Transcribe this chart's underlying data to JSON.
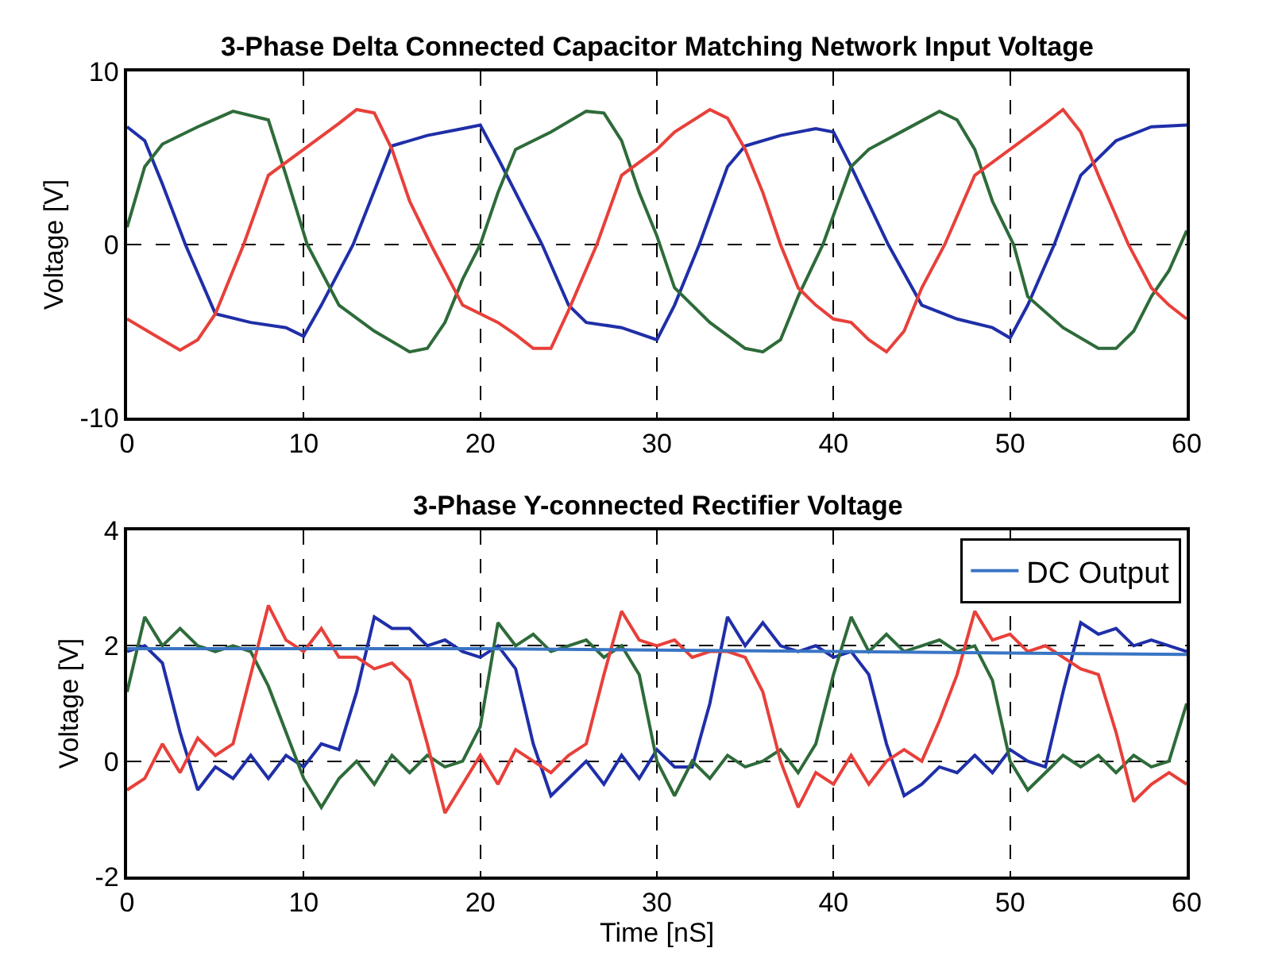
{
  "chart_data": [
    {
      "type": "line",
      "title": "3-Phase Delta Connected Capacitor Matching Network Input Voltage",
      "ylabel": "Voltage [V]",
      "xlim": [
        0,
        60
      ],
      "xticks": [
        0,
        10,
        20,
        30,
        40,
        50,
        60
      ],
      "ylim": [
        -10,
        10
      ],
      "yticks": [
        -10,
        0,
        10
      ],
      "grid": true,
      "legend": false,
      "marker": "none",
      "line_style": "solid",
      "series": [
        {
          "color": "#1f2fa8",
          "x": [
            0,
            1,
            2,
            3.3,
            5,
            7,
            9,
            10,
            11,
            12.8,
            15,
            17,
            19,
            20,
            21,
            23.5,
            25,
            26,
            28,
            30,
            31,
            32.4,
            34,
            35,
            37,
            39,
            40,
            41,
            43.1,
            45,
            47,
            49,
            50,
            51,
            52.5,
            54,
            56,
            58,
            60
          ],
          "values": [
            6.8,
            6,
            3.5,
            0,
            -4,
            -4.5,
            -4.8,
            -5.3,
            -3.5,
            0,
            5.7,
            6.3,
            6.7,
            6.9,
            5,
            0,
            -3.5,
            -4.5,
            -4.8,
            -5.5,
            -3.5,
            0,
            4.5,
            5.7,
            6.3,
            6.7,
            6.5,
            4.5,
            0,
            -3.5,
            -4.3,
            -4.8,
            -5.4,
            -3.5,
            0,
            4,
            6,
            6.8,
            6.9
          ]
        },
        {
          "color": "#2e6b3a",
          "x": [
            0,
            1,
            2,
            4,
            6,
            8,
            9,
            10.2,
            12,
            14,
            16,
            17,
            18,
            19,
            20,
            21,
            22,
            24,
            26,
            27,
            28,
            29,
            30,
            31,
            33,
            35,
            36,
            37,
            38,
            39.4,
            41,
            42,
            44,
            46,
            47,
            48,
            49,
            50.2,
            51,
            53,
            55,
            56,
            57,
            58,
            59,
            60
          ],
          "values": [
            1,
            4.5,
            5.8,
            6.8,
            7.7,
            7.2,
            4,
            0,
            -3.5,
            -5,
            -6.2,
            -6,
            -4.5,
            -2,
            0,
            3,
            5.5,
            6.5,
            7.7,
            7.6,
            6,
            3,
            0.5,
            -2.5,
            -4.5,
            -6,
            -6.2,
            -5.5,
            -3,
            0,
            4.5,
            5.5,
            6.6,
            7.7,
            7.2,
            5.5,
            2.5,
            0,
            -3,
            -4.8,
            -6,
            -6,
            -5,
            -3,
            -1.5,
            0.8
          ]
        },
        {
          "color": "#e8403a",
          "x": [
            0,
            2,
            3,
            4,
            5,
            6.6,
            8,
            10,
            12,
            13,
            14,
            15,
            16,
            17.2,
            19,
            21,
            22,
            23,
            24,
            25,
            26.6,
            28,
            30,
            31,
            33,
            34,
            35,
            36,
            37,
            38,
            39,
            40,
            41,
            42,
            43,
            44,
            45,
            46.3,
            48,
            50,
            52,
            53,
            54,
            55,
            56.7,
            58,
            59,
            60
          ],
          "values": [
            -4.3,
            -5.5,
            -6.1,
            -5.5,
            -4,
            0,
            4,
            5.5,
            7,
            7.8,
            7.6,
            5.5,
            2.5,
            0,
            -3.5,
            -4.5,
            -5.2,
            -6,
            -6,
            -3.8,
            0,
            4,
            5.5,
            6.5,
            7.8,
            7.3,
            5.5,
            3,
            0,
            -2.5,
            -3.5,
            -4.3,
            -4.5,
            -5.5,
            -6.2,
            -5,
            -2.5,
            0,
            4,
            5.5,
            7,
            7.8,
            6.5,
            4,
            0,
            -2.5,
            -3.5,
            -4.3
          ]
        }
      ]
    },
    {
      "type": "line",
      "title": "3-Phase Y-connected Rectifier Voltage",
      "xlabel": "Time [nS]",
      "ylabel": "Voltage [V]",
      "xlim": [
        0,
        60
      ],
      "xticks": [
        0,
        10,
        20,
        30,
        40,
        50,
        60
      ],
      "ylim": [
        -2,
        4
      ],
      "yticks": [
        -2,
        0,
        2,
        4
      ],
      "grid": true,
      "legend": "top right",
      "marker": "none",
      "line_style": "solid",
      "x": [
        0,
        1,
        2,
        3,
        4,
        5,
        6,
        7,
        8,
        9,
        10,
        11,
        12,
        13,
        14,
        15,
        16,
        17,
        18,
        19,
        20,
        21,
        22,
        23,
        24,
        25,
        26,
        27,
        28,
        29,
        30,
        31,
        32,
        33,
        34,
        35,
        36,
        37,
        38,
        39,
        40,
        41,
        42,
        43,
        44,
        45,
        46,
        47,
        48,
        49,
        50,
        51,
        52,
        53,
        54,
        55,
        56,
        57,
        58,
        59,
        60
      ],
      "series": [
        {
          "color": "#1f2fa8",
          "values": [
            1.9,
            2.0,
            1.7,
            0.5,
            -0.5,
            -0.1,
            -0.3,
            0.1,
            -0.3,
            0.1,
            -0.1,
            0.3,
            0.2,
            1.2,
            2.5,
            2.3,
            2.3,
            2.0,
            2.1,
            1.9,
            1.8,
            2.0,
            1.6,
            0.3,
            -0.6,
            -0.3,
            0.0,
            -0.4,
            0.1,
            -0.3,
            0.2,
            -0.1,
            -0.1,
            1.0,
            2.5,
            2.0,
            2.4,
            2.0,
            1.9,
            2.0,
            1.8,
            1.9,
            1.5,
            0.3,
            -0.6,
            -0.4,
            -0.1,
            -0.2,
            0.1,
            -0.2,
            0.2,
            0.0,
            -0.1,
            1.2,
            2.4,
            2.2,
            2.3,
            2.0,
            2.1,
            2.0,
            1.9
          ]
        },
        {
          "color": "#2e6b3a",
          "values": [
            1.2,
            2.5,
            2.0,
            2.3,
            2.0,
            1.9,
            2.0,
            1.9,
            1.3,
            0.5,
            -0.3,
            -0.8,
            -0.3,
            0.0,
            -0.4,
            0.1,
            -0.2,
            0.1,
            -0.1,
            0.0,
            0.6,
            2.4,
            2.0,
            2.2,
            1.9,
            2.0,
            2.1,
            1.8,
            2.0,
            1.5,
            0.0,
            -0.6,
            0.0,
            -0.3,
            0.1,
            -0.1,
            0.0,
            0.2,
            -0.2,
            0.3,
            1.5,
            2.5,
            1.9,
            2.2,
            1.9,
            2.0,
            2.1,
            1.9,
            2.0,
            1.4,
            0.0,
            -0.5,
            -0.2,
            0.1,
            -0.1,
            0.1,
            -0.2,
            0.1,
            -0.1,
            0.0,
            1.0
          ]
        },
        {
          "color": "#e8403a",
          "values": [
            -0.5,
            -0.3,
            0.3,
            -0.2,
            0.4,
            0.1,
            0.3,
            1.5,
            2.7,
            2.1,
            1.9,
            2.3,
            1.8,
            1.8,
            1.6,
            1.7,
            1.4,
            0.3,
            -0.9,
            -0.4,
            0.1,
            -0.4,
            0.2,
            0.0,
            -0.2,
            0.1,
            0.3,
            1.5,
            2.6,
            2.1,
            2.0,
            2.1,
            1.8,
            1.9,
            1.9,
            1.8,
            1.2,
            0.0,
            -0.8,
            -0.2,
            -0.4,
            0.1,
            -0.4,
            0.0,
            0.2,
            0.0,
            0.7,
            1.5,
            2.6,
            2.1,
            2.2,
            1.9,
            2.0,
            1.8,
            1.6,
            1.5,
            0.5,
            -0.7,
            -0.4,
            -0.2,
            -0.4
          ]
        },
        {
          "name": "DC Output",
          "color": "#3a75c4",
          "x": [
            0,
            20,
            40,
            60
          ],
          "values": [
            1.95,
            1.95,
            1.9,
            1.85
          ]
        }
      ]
    }
  ]
}
